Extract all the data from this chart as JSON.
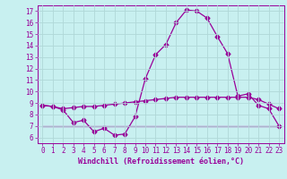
{
  "xlabel": "Windchill (Refroidissement éolien,°C)",
  "background_color": "#c8f0f0",
  "line_color": "#990099",
  "grid_color": "#b0d8d8",
  "xlim": [
    -0.5,
    23.5
  ],
  "ylim": [
    5.5,
    17.5
  ],
  "xticks": [
    0,
    1,
    2,
    3,
    4,
    5,
    6,
    7,
    8,
    9,
    10,
    11,
    12,
    13,
    14,
    15,
    16,
    17,
    18,
    19,
    20,
    21,
    22,
    23
  ],
  "yticks": [
    6,
    7,
    8,
    9,
    10,
    11,
    12,
    13,
    14,
    15,
    16,
    17
  ],
  "line1_x": [
    0,
    1,
    2,
    3,
    4,
    5,
    6,
    7,
    8,
    9,
    10,
    11,
    12,
    13,
    14,
    15,
    16,
    17,
    18,
    19,
    20,
    21,
    22,
    23
  ],
  "line1_y": [
    8.8,
    8.7,
    8.4,
    7.3,
    7.5,
    6.5,
    6.8,
    6.2,
    6.3,
    7.8,
    11.1,
    13.2,
    14.1,
    16.0,
    17.1,
    17.0,
    16.4,
    14.8,
    13.3,
    9.6,
    9.8,
    8.8,
    8.5,
    7.0
  ],
  "line2_x": [
    0,
    1,
    2,
    3,
    4,
    5,
    6,
    7,
    8,
    9,
    10,
    11,
    12,
    13,
    14,
    15,
    16,
    17,
    18,
    19,
    20,
    21,
    22,
    23
  ],
  "line2_y": [
    8.8,
    8.7,
    8.5,
    8.6,
    8.7,
    8.7,
    8.8,
    8.9,
    9.0,
    9.1,
    9.2,
    9.3,
    9.4,
    9.5,
    9.5,
    9.5,
    9.5,
    9.5,
    9.5,
    9.5,
    9.5,
    9.3,
    8.9,
    8.5
  ],
  "line3_x": [
    0,
    1,
    2,
    3,
    4,
    5,
    6,
    7,
    8,
    9,
    10,
    11,
    12,
    13,
    14,
    15,
    16,
    17,
    18,
    19,
    20,
    21,
    22,
    23
  ],
  "line3_y": [
    7.0,
    7.0,
    7.0,
    7.0,
    7.0,
    7.0,
    7.0,
    7.0,
    7.0,
    7.0,
    7.0,
    7.0,
    7.0,
    7.0,
    7.0,
    7.0,
    7.0,
    7.0,
    7.0,
    7.0,
    7.0,
    7.0,
    7.0,
    7.0
  ],
  "tick_fontsize": 5.5,
  "xlabel_fontsize": 6.0
}
